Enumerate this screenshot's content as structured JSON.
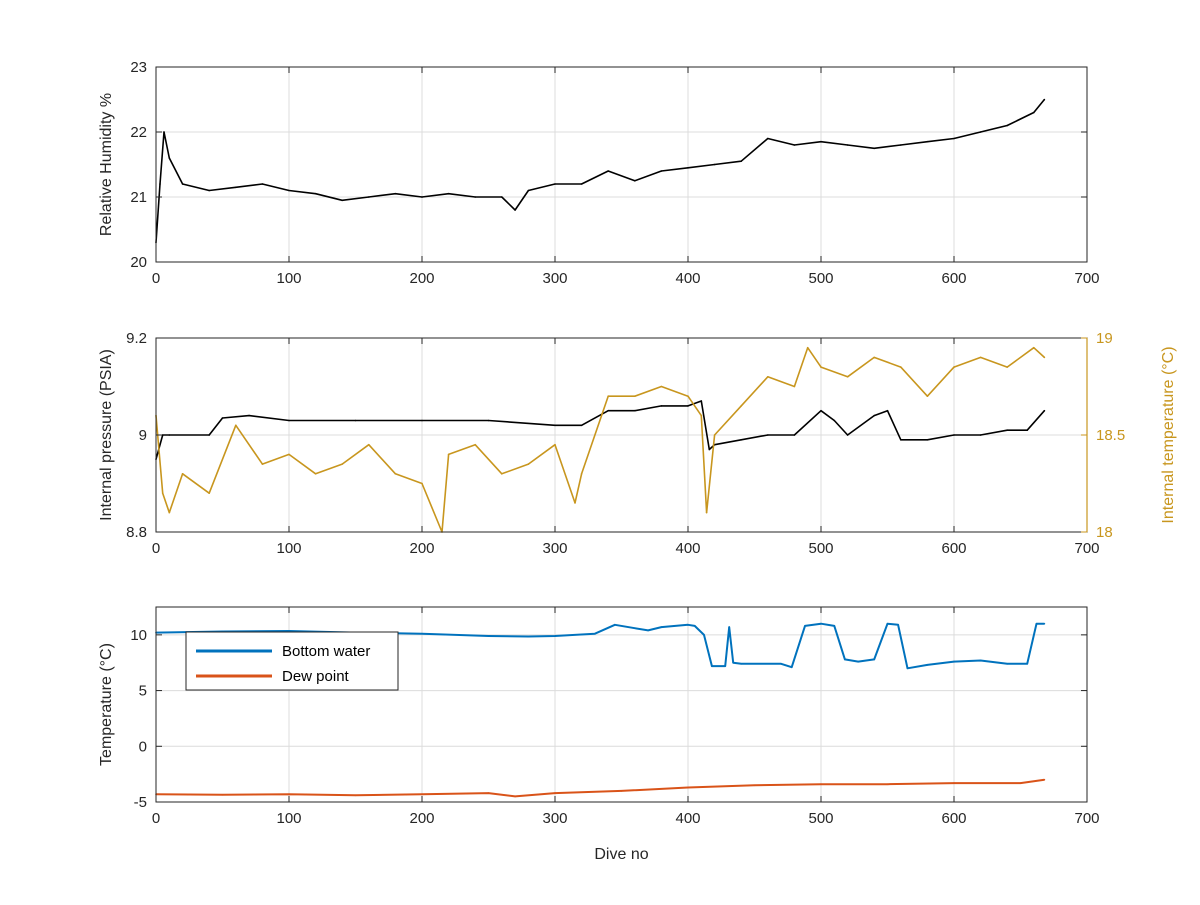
{
  "chart_data": [
    {
      "type": "line",
      "xlabel": "",
      "ylabel": "Relative Humidity %",
      "xlim": [
        0,
        700
      ],
      "ylim": [
        20,
        23
      ],
      "xticks": [
        0,
        100,
        200,
        300,
        400,
        500,
        600,
        700
      ],
      "yticks": [
        20,
        21,
        22,
        23
      ],
      "grid": true,
      "colors": {
        "series": "#000000"
      },
      "series": [
        {
          "name": "",
          "color": "#000000",
          "x": [
            0,
            3,
            6,
            10,
            20,
            40,
            60,
            80,
            100,
            120,
            140,
            160,
            180,
            200,
            220,
            240,
            260,
            270,
            280,
            300,
            320,
            340,
            360,
            380,
            400,
            420,
            440,
            460,
            480,
            500,
            520,
            540,
            560,
            580,
            600,
            620,
            640,
            660,
            668
          ],
          "y": [
            20.3,
            21.2,
            22.0,
            21.6,
            21.2,
            21.1,
            21.15,
            21.2,
            21.1,
            21.05,
            20.95,
            21.0,
            21.05,
            21.0,
            21.05,
            21.0,
            21.0,
            20.8,
            21.1,
            21.2,
            21.2,
            21.4,
            21.25,
            21.4,
            21.45,
            21.5,
            21.55,
            21.9,
            21.8,
            21.85,
            21.8,
            21.75,
            21.8,
            21.85,
            21.9,
            22.0,
            22.1,
            22.3,
            22.5
          ]
        }
      ]
    },
    {
      "type": "line",
      "xlabel": "",
      "ylabel": "Internal pressure (PSIA)",
      "ylabel_right": "Internal temperature (°C)",
      "xlim": [
        0,
        700
      ],
      "ylim": [
        8.8,
        9.2
      ],
      "ylim_right": [
        18,
        19
      ],
      "xticks": [
        0,
        100,
        200,
        300,
        400,
        500,
        600,
        700
      ],
      "yticks": [
        8.8,
        9,
        9.2
      ],
      "yticks_right": [
        18,
        18.5,
        19
      ],
      "grid": true,
      "colors": {
        "pressure": "#000000",
        "temperature": "#c8961e"
      },
      "series": [
        {
          "name": "",
          "axis": "left",
          "color": "#000000",
          "x": [
            0,
            5,
            10,
            40,
            50,
            70,
            100,
            150,
            200,
            250,
            300,
            320,
            340,
            360,
            380,
            400,
            410,
            416,
            420,
            440,
            460,
            480,
            500,
            510,
            520,
            540,
            550,
            560,
            580,
            600,
            620,
            640,
            655,
            668
          ],
          "y": [
            8.95,
            9.0,
            9.0,
            9.0,
            9.035,
            9.04,
            9.03,
            9.03,
            9.03,
            9.03,
            9.02,
            9.02,
            9.05,
            9.05,
            9.06,
            9.06,
            9.07,
            8.97,
            8.98,
            8.99,
            9.0,
            9.0,
            9.05,
            9.03,
            9.0,
            9.04,
            9.05,
            8.99,
            8.99,
            9.0,
            9.0,
            9.01,
            9.01,
            9.05
          ]
        },
        {
          "name": "",
          "axis": "right",
          "color": "#c8961e",
          "x": [
            0,
            5,
            10,
            20,
            40,
            60,
            80,
            100,
            120,
            140,
            160,
            180,
            200,
            215,
            220,
            240,
            260,
            280,
            300,
            315,
            320,
            340,
            360,
            380,
            400,
            410,
            414,
            420,
            440,
            460,
            480,
            490,
            500,
            520,
            540,
            560,
            580,
            600,
            620,
            640,
            660,
            668
          ],
          "y": [
            18.6,
            18.2,
            18.1,
            18.3,
            18.2,
            18.55,
            18.35,
            18.4,
            18.3,
            18.35,
            18.45,
            18.3,
            18.25,
            18.0,
            18.4,
            18.45,
            18.3,
            18.35,
            18.45,
            18.15,
            18.3,
            18.7,
            18.7,
            18.75,
            18.7,
            18.6,
            18.1,
            18.5,
            18.65,
            18.8,
            18.75,
            18.95,
            18.85,
            18.8,
            18.9,
            18.85,
            18.7,
            18.85,
            18.9,
            18.85,
            18.95,
            18.9
          ]
        }
      ]
    },
    {
      "type": "line",
      "xlabel": "Dive no",
      "ylabel": "Temperature (°C)",
      "xlim": [
        0,
        700
      ],
      "ylim": [
        -5,
        12.5
      ],
      "xticks": [
        0,
        100,
        200,
        300,
        400,
        500,
        600,
        700
      ],
      "yticks": [
        -5,
        0,
        5,
        10
      ],
      "grid": true,
      "legend": {
        "placement": "top-left",
        "entries": [
          "Bottom water",
          "Dew point"
        ]
      },
      "colors": {
        "bottom_water": "#0072bd",
        "dew_point": "#d95319"
      },
      "series": [
        {
          "name": "Bottom water",
          "color": "#0072bd",
          "x": [
            0,
            50,
            100,
            150,
            200,
            250,
            280,
            300,
            330,
            345,
            360,
            370,
            380,
            400,
            405,
            412,
            418,
            428,
            431,
            434,
            440,
            470,
            478,
            488,
            500,
            510,
            518,
            528,
            540,
            550,
            558,
            565,
            580,
            600,
            620,
            640,
            655,
            662,
            668
          ],
          "y": [
            10.2,
            10.3,
            10.35,
            10.2,
            10.1,
            9.9,
            9.85,
            9.9,
            10.1,
            10.9,
            10.6,
            10.4,
            10.7,
            10.9,
            10.8,
            10.0,
            7.2,
            7.2,
            10.7,
            7.5,
            7.4,
            7.4,
            7.1,
            10.8,
            11.0,
            10.8,
            7.8,
            7.6,
            7.8,
            11.0,
            10.9,
            7.0,
            7.3,
            7.6,
            7.7,
            7.4,
            7.4,
            11.0,
            11.0
          ]
        },
        {
          "name": "Dew point",
          "color": "#d95319",
          "x": [
            0,
            50,
            100,
            150,
            200,
            250,
            270,
            300,
            350,
            400,
            450,
            500,
            550,
            600,
            650,
            668
          ],
          "y": [
            -4.3,
            -4.35,
            -4.3,
            -4.4,
            -4.3,
            -4.2,
            -4.5,
            -4.2,
            -4.0,
            -3.7,
            -3.5,
            -3.4,
            -3.4,
            -3.3,
            -3.3,
            -3.0
          ]
        }
      ]
    }
  ]
}
